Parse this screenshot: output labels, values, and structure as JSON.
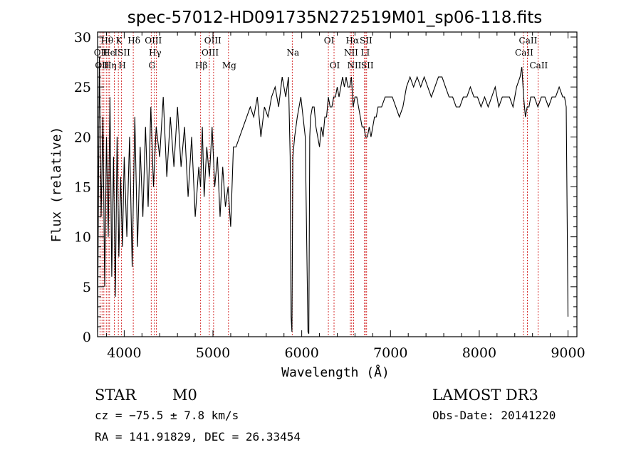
{
  "chart_data": {
    "type": "line",
    "title": "spec-57012-HD091735N272519M01_sp06-118.fits",
    "xlabel": "Wavelength (Å)",
    "ylabel": "Flux (relative)",
    "xlim": [
      3700,
      9100
    ],
    "ylim": [
      0,
      30.5
    ],
    "xticks": [
      4000,
      5000,
      6000,
      7000,
      8000,
      9000
    ],
    "yticks": [
      0,
      5,
      10,
      15,
      20,
      25,
      30
    ],
    "grid": false,
    "series": [
      {
        "x": [
          3700,
          3720,
          3740,
          3760,
          3780,
          3800,
          3820,
          3840,
          3860,
          3880,
          3900,
          3920,
          3940,
          3960,
          3980,
          4000,
          4030,
          4060,
          4090,
          4120,
          4150,
          4180,
          4210,
          4240,
          4270,
          4300,
          4330,
          4360,
          4400,
          4440,
          4480,
          4520,
          4560,
          4600,
          4640,
          4680,
          4720,
          4760,
          4800,
          4840,
          4860,
          4880,
          4900,
          4930,
          4960,
          4990,
          5020,
          5050,
          5080,
          5110,
          5140,
          5170,
          5200,
          5230,
          5260,
          5300,
          5340,
          5380,
          5420,
          5460,
          5500,
          5540,
          5580,
          5620,
          5660,
          5700,
          5740,
          5780,
          5820,
          5850,
          5870,
          5880,
          5890,
          5900,
          5920,
          5950,
          5990,
          6040,
          6070,
          6080,
          6090,
          6100,
          6120,
          6140,
          6160,
          6180,
          6200,
          6220,
          6240,
          6260,
          6280,
          6300,
          6320,
          6340,
          6360,
          6380,
          6400,
          6420,
          6440,
          6460,
          6480,
          6500,
          6520,
          6540,
          6560,
          6580,
          6600,
          6620,
          6640,
          6660,
          6680,
          6700,
          6720,
          6740,
          6760,
          6780,
          6800,
          6820,
          6840,
          6860,
          6880,
          6900,
          6940,
          6980,
          7020,
          7060,
          7100,
          7140,
          7180,
          7220,
          7260,
          7300,
          7340,
          7380,
          7420,
          7460,
          7500,
          7540,
          7580,
          7620,
          7660,
          7700,
          7740,
          7780,
          7820,
          7860,
          7900,
          7940,
          7980,
          8020,
          8060,
          8100,
          8140,
          8180,
          8220,
          8260,
          8300,
          8340,
          8380,
          8420,
          8460,
          8480,
          8500,
          8520,
          8540,
          8560,
          8580,
          8600,
          8620,
          8660,
          8700,
          8740,
          8780,
          8820,
          8860,
          8900,
          8940,
          8960,
          8980,
          9000
        ],
        "y": [
          0.5,
          28,
          12,
          22,
          5,
          20,
          10,
          24,
          6,
          18,
          4,
          20,
          8,
          16,
          9,
          18,
          10,
          20,
          7,
          22,
          9,
          19,
          12,
          21,
          13,
          23,
          15,
          21,
          18,
          24,
          16,
          22,
          17,
          23,
          17,
          21,
          14,
          20,
          12,
          17,
          15,
          21,
          14,
          19,
          16,
          21,
          15,
          18,
          12,
          17,
          13,
          15,
          11,
          19,
          19,
          20,
          21,
          22,
          23,
          22,
          24,
          20,
          23,
          22,
          24,
          25,
          23,
          26,
          24,
          26,
          18,
          2,
          0.5,
          18,
          20,
          22,
          24,
          20,
          0.5,
          0.3,
          20,
          22,
          23,
          23,
          21,
          20,
          19,
          21,
          20,
          22,
          22,
          24,
          23,
          23,
          24,
          24,
          25,
          24,
          25,
          26,
          25,
          26,
          25,
          25,
          26,
          23,
          24,
          24,
          23,
          22,
          21,
          21,
          20,
          20,
          21,
          20,
          21,
          22,
          22,
          23,
          23,
          23,
          24,
          24,
          24,
          23,
          22,
          23,
          25,
          26,
          25,
          26,
          25,
          26,
          25,
          24,
          25,
          26,
          26,
          25,
          24,
          24,
          23,
          23,
          24,
          24,
          25,
          24,
          24,
          23,
          24,
          23,
          24,
          25,
          23,
          24,
          24,
          24,
          23,
          25,
          26,
          27,
          24,
          22,
          23,
          23,
          24,
          24,
          24,
          23,
          24,
          24,
          23,
          24,
          24,
          25,
          24,
          24,
          23,
          2
        ]
      }
    ],
    "line_marks": [
      {
        "label": "OII",
        "wl": 3727,
        "row": 2
      },
      {
        "label": "OII",
        "wl": 3740,
        "row": 3
      },
      {
        "label": "Hθ",
        "wl": 3798,
        "row": 1
      },
      {
        "label": "He",
        "wl": 3820,
        "row": 2
      },
      {
        "label": "Hη",
        "wl": 3835,
        "row": 3
      },
      {
        "label": "K",
        "wl": 3934,
        "row": 1
      },
      {
        "label": "ISII",
        "wl": 3970,
        "row": 2
      },
      {
        "label": "H",
        "wl": 3970,
        "row": 3
      },
      {
        "label": "Hδ",
        "wl": 4102,
        "row": 1
      },
      {
        "label": "OIII",
        "wl": 4320,
        "row": 1
      },
      {
        "label": "Hγ",
        "wl": 4340,
        "row": 2
      },
      {
        "label": "G",
        "wl": 4304,
        "row": 3
      },
      {
        "label": "Hβ",
        "wl": 4861,
        "row": 3
      },
      {
        "label": "OIII",
        "wl": 4990,
        "row": 1
      },
      {
        "label": "OIII",
        "wl": 4960,
        "row": 2
      },
      {
        "label": "Mg",
        "wl": 5175,
        "row": 3
      },
      {
        "label": "Na",
        "wl": 5893,
        "row": 2
      },
      {
        "label": "OI",
        "wl": 6300,
        "row": 1
      },
      {
        "label": "OI",
        "wl": 6364,
        "row": 3
      },
      {
        "label": "Hα",
        "wl": 6563,
        "row": 1
      },
      {
        "label": "SII",
        "wl": 6716,
        "row": 1
      },
      {
        "label": "NII",
        "wl": 6548,
        "row": 2
      },
      {
        "label": "LI",
        "wl": 6708,
        "row": 2
      },
      {
        "label": "NII",
        "wl": 6584,
        "row": 3
      },
      {
        "label": "SII",
        "wl": 6731,
        "row": 3
      },
      {
        "label": "CaII",
        "wl": 8542,
        "row": 1
      },
      {
        "label": "CaII",
        "wl": 8498,
        "row": 2
      },
      {
        "label": "CaII",
        "wl": 8662,
        "row": 3
      }
    ],
    "marker_lines_wl": [
      3727,
      3750,
      3771,
      3798,
      3820,
      3835,
      3889,
      3934,
      3970,
      4102,
      4304,
      4340,
      4363,
      4861,
      4959,
      5007,
      5175,
      5893,
      6300,
      6364,
      6548,
      6563,
      6584,
      6708,
      6716,
      6731,
      8498,
      8542,
      8662
    ]
  },
  "info": {
    "object_class": "STAR",
    "subclass": "M0",
    "survey": "LAMOST DR3",
    "cz": "cz = −75.5 ± 7.8 km/s",
    "obs_date": "Obs-Date: 20141220",
    "coords": "RA = 141.91829, DEC =  26.33454"
  },
  "colors": {
    "spectrum": "#000000",
    "marker_line": "#cc0000",
    "background": "#ffffff"
  }
}
